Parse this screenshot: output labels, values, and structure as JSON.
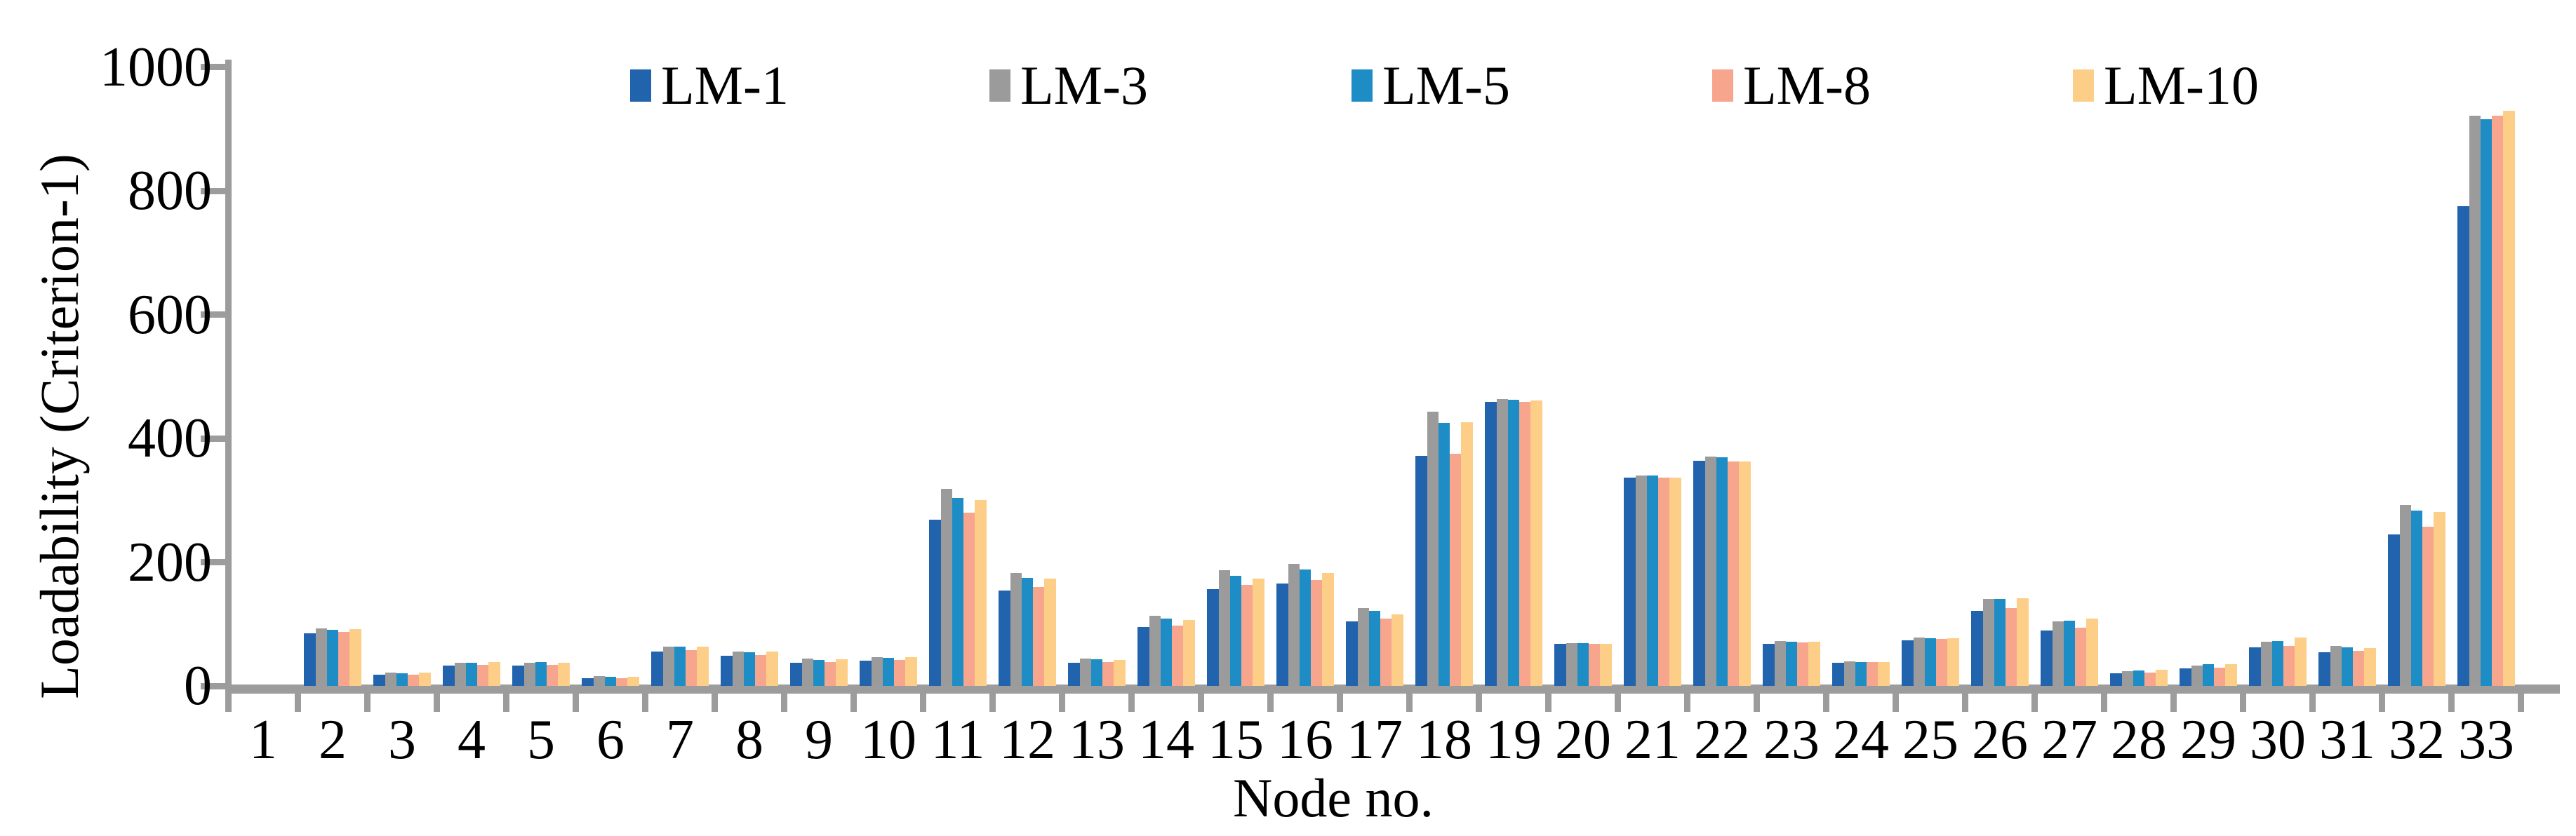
{
  "chart_data": {
    "type": "bar",
    "title": "",
    "xlabel": "Node no.",
    "ylabel": "Loadability (Criterion-1)",
    "categories": [
      "1",
      "2",
      "3",
      "4",
      "5",
      "6",
      "7",
      "8",
      "9",
      "10",
      "11",
      "12",
      "13",
      "14",
      "15",
      "16",
      "17",
      "18",
      "19",
      "20",
      "21",
      "22",
      "23",
      "24",
      "25",
      "26",
      "27",
      "28",
      "29",
      "30",
      "31",
      "32",
      "33"
    ],
    "series": [
      {
        "name": "LM-1",
        "color": "#2263AE",
        "values": [
          0,
          85,
          18,
          33,
          33,
          13,
          55,
          49,
          37,
          41,
          269,
          154,
          37,
          95,
          156,
          166,
          104,
          372,
          459,
          68,
          336,
          364,
          68,
          37,
          74,
          121,
          90,
          20,
          28,
          62,
          54,
          245,
          775
        ]
      },
      {
        "name": "LM-3",
        "color": "#9B9B9B",
        "values": [
          0,
          93,
          21,
          37,
          37,
          16,
          64,
          56,
          44,
          47,
          318,
          183,
          44,
          113,
          187,
          197,
          126,
          443,
          464,
          69,
          340,
          370,
          72,
          40,
          78,
          141,
          104,
          24,
          33,
          71,
          65,
          292,
          921
        ]
      },
      {
        "name": "LM-5",
        "color": "#1F8DC5",
        "values": [
          0,
          91,
          20,
          37,
          38,
          15,
          63,
          54,
          42,
          45,
          304,
          174,
          43,
          109,
          178,
          188,
          121,
          425,
          462,
          69,
          340,
          369,
          71,
          39,
          77,
          140,
          105,
          25,
          35,
          73,
          62,
          283,
          916
        ]
      },
      {
        "name": "LM-8",
        "color": "#F8A58E",
        "values": [
          0,
          87,
          18,
          34,
          34,
          13,
          58,
          50,
          38,
          42,
          280,
          160,
          39,
          98,
          163,
          171,
          109,
          375,
          459,
          68,
          337,
          363,
          70,
          38,
          76,
          126,
          94,
          21,
          29,
          65,
          57,
          257,
          921
        ]
      },
      {
        "name": "LM-10",
        "color": "#FDCE88",
        "values": [
          0,
          92,
          21,
          38,
          37,
          15,
          63,
          55,
          43,
          46,
          300,
          173,
          42,
          107,
          173,
          183,
          116,
          426,
          461,
          68,
          337,
          363,
          71,
          39,
          77,
          142,
          109,
          26,
          35,
          78,
          61,
          281,
          929
        ]
      }
    ],
    "ylim": [
      0,
      1000
    ],
    "yticks": [
      "0",
      "200",
      "400",
      "600",
      "800",
      "1000"
    ],
    "grid": false,
    "legend_position": "top"
  },
  "colors": {
    "axis": "#9C9C9C",
    "text": "#000000",
    "background": "#FFFFFF"
  }
}
